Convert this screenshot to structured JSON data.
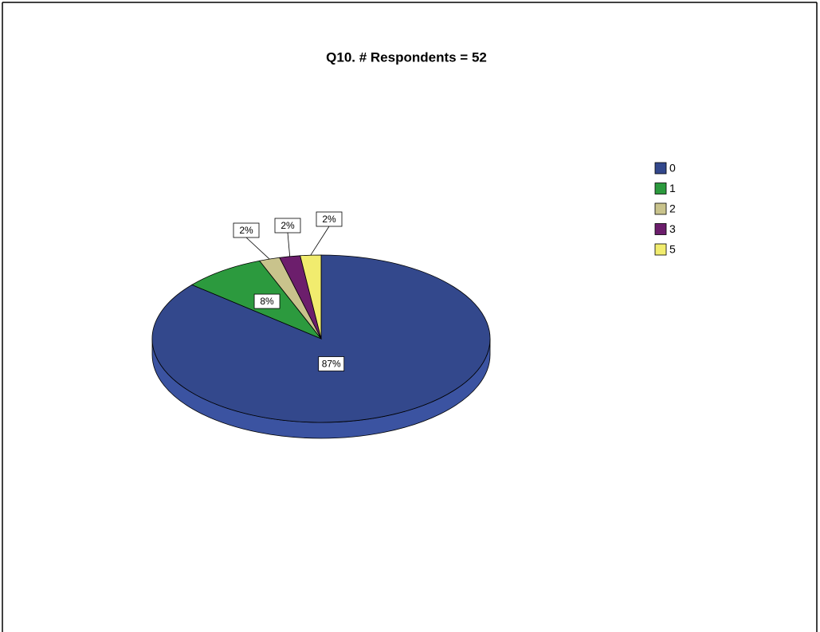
{
  "chart_data": {
    "type": "pie",
    "title": "Q10. # Respondents = 52",
    "categories": [
      "0",
      "1",
      "2",
      "3",
      "5"
    ],
    "values": [
      87,
      8,
      2,
      2,
      2
    ],
    "value_labels": [
      "87%",
      "8%",
      "2%",
      "2%",
      "2%"
    ],
    "colors": [
      "#33488c",
      "#2c9a3e",
      "#c9c38c",
      "#6c1e6c",
      "#f1ec6e"
    ],
    "legend": "right"
  }
}
